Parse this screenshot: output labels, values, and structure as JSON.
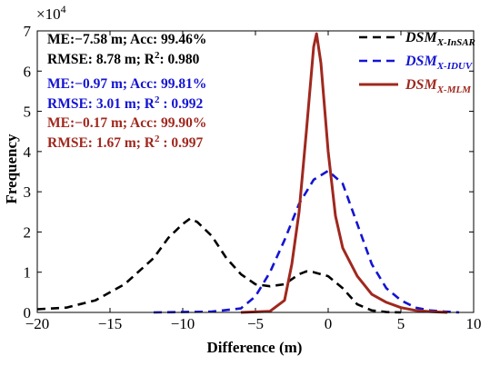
{
  "chart_data": {
    "type": "line",
    "xlabel": "Difference (m)",
    "ylabel": "Frequency",
    "y_multiplier": "×10",
    "y_multiplier_exp": "4",
    "xlim": [
      -20,
      10
    ],
    "ylim": [
      0,
      7
    ],
    "xticks": [
      "−20",
      "−15",
      "−10",
      "−5",
      "0",
      "5",
      "10"
    ],
    "yticks": [
      "0",
      "1",
      "2",
      "3",
      "4",
      "5",
      "6",
      "7"
    ],
    "grid": false,
    "legend_position": "top-right",
    "series": [
      {
        "name": "DSM",
        "name_sub": "X-InSAR",
        "color": "#000000",
        "dash": "dashed",
        "points": [
          [
            -20,
            0.08
          ],
          [
            -18,
            0.12
          ],
          [
            -16,
            0.3
          ],
          [
            -14,
            0.7
          ],
          [
            -12,
            1.35
          ],
          [
            -11,
            1.85
          ],
          [
            -10,
            2.2
          ],
          [
            -9.5,
            2.33
          ],
          [
            -9,
            2.25
          ],
          [
            -8,
            1.9
          ],
          [
            -7,
            1.35
          ],
          [
            -6,
            0.95
          ],
          [
            -5,
            0.7
          ],
          [
            -4,
            0.65
          ],
          [
            -3,
            0.7
          ],
          [
            -2,
            0.95
          ],
          [
            -1.5,
            1.02
          ],
          [
            -1,
            1.0
          ],
          [
            0,
            0.9
          ],
          [
            1,
            0.6
          ],
          [
            2,
            0.2
          ],
          [
            3,
            0.05
          ],
          [
            4,
            0.01
          ],
          [
            5,
            0.0
          ]
        ]
      },
      {
        "name": "DSM",
        "name_sub": "X-IDUV",
        "color": "#1414d2",
        "dash": "dashed",
        "points": [
          [
            -12,
            0.0
          ],
          [
            -8,
            0.02
          ],
          [
            -6,
            0.1
          ],
          [
            -5,
            0.4
          ],
          [
            -4,
            1.0
          ],
          [
            -3,
            1.8
          ],
          [
            -2,
            2.7
          ],
          [
            -1,
            3.3
          ],
          [
            0,
            3.52
          ],
          [
            1,
            3.2
          ],
          [
            2,
            2.2
          ],
          [
            3,
            1.2
          ],
          [
            4,
            0.6
          ],
          [
            5,
            0.3
          ],
          [
            6,
            0.12
          ],
          [
            7,
            0.05
          ],
          [
            8,
            0.02
          ],
          [
            9,
            0.0
          ]
        ]
      },
      {
        "name": "DSM",
        "name_sub": "X-MLM",
        "color": "#a0281e",
        "dash": "solid",
        "points": [
          [
            -6,
            0.0
          ],
          [
            -4,
            0.03
          ],
          [
            -3,
            0.3
          ],
          [
            -2.5,
            1.2
          ],
          [
            -2,
            2.5
          ],
          [
            -1.5,
            4.5
          ],
          [
            -1,
            6.6
          ],
          [
            -0.8,
            6.93
          ],
          [
            -0.5,
            6.2
          ],
          [
            0,
            4.0
          ],
          [
            0.5,
            2.4
          ],
          [
            1,
            1.6
          ],
          [
            2,
            0.9
          ],
          [
            3,
            0.45
          ],
          [
            4,
            0.25
          ],
          [
            5,
            0.12
          ],
          [
            6,
            0.05
          ],
          [
            7,
            0.02
          ],
          [
            8.2,
            0.0
          ]
        ]
      }
    ],
    "annotations": [
      {
        "line1": "ME:−7.58 m; Acc: 99.46%",
        "line2": "RMSE: 8.78 m;  R",
        "sup": "2",
        "line2_end": ": 0.980",
        "color": "#000000"
      },
      {
        "line1": "ME:−0.97 m; Acc: 99.81%",
        "line2": "RMSE: 3.01 m; R",
        "sup": "2",
        "line2_end": " : 0.992",
        "color": "#1414d2"
      },
      {
        "line1": "ME:−0.17 m; Acc: 99.90%",
        "line2": "RMSE: 1.67 m; R",
        "sup": "2",
        "line2_end": " : 0.997",
        "color": "#a0281e"
      }
    ]
  }
}
